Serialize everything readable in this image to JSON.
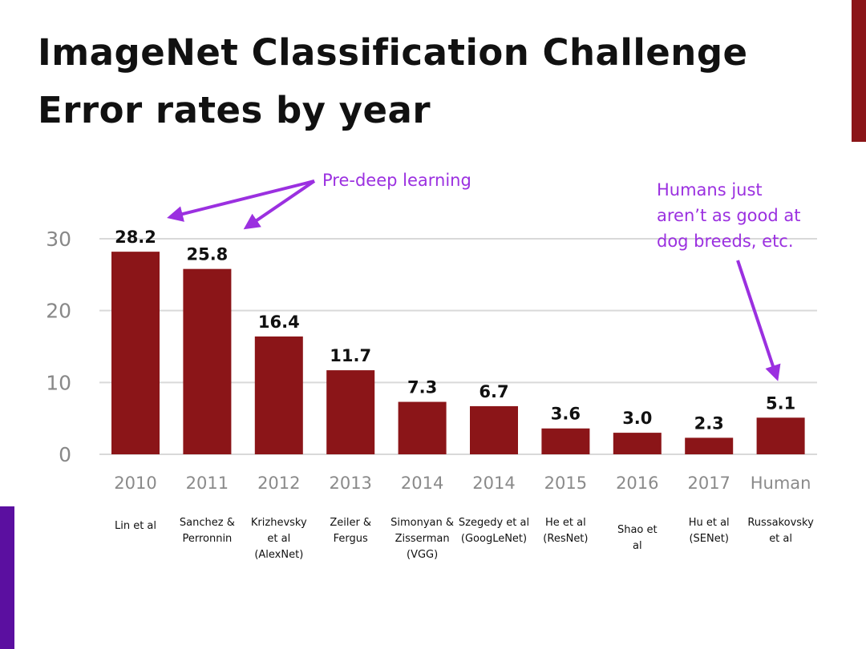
{
  "title": {
    "line1": "ImageNet Classification Challenge",
    "line2": "Error rates by year"
  },
  "colors": {
    "bar": "#8b1518",
    "accent_right": "#8b1518",
    "accent_left": "#5b0fa0",
    "annotation": "#9b30e0",
    "gridline": "#d9d9d9"
  },
  "chart_data": {
    "type": "bar",
    "title": "ImageNet Classification Challenge Error rates by year",
    "xlabel": "",
    "ylabel": "",
    "ylim": [
      0,
      30
    ],
    "yticks": [
      0,
      10,
      20,
      30
    ],
    "grid": true,
    "categories": [
      "2010",
      "2011",
      "2012",
      "2013",
      "2014",
      "2014",
      "2015",
      "2016",
      "2017",
      "Human"
    ],
    "values": [
      28.2,
      25.8,
      16.4,
      11.7,
      7.3,
      6.7,
      3.6,
      3.0,
      2.3,
      5.1
    ],
    "value_labels": [
      "28.2",
      "25.8",
      "16.4",
      "11.7",
      "7.3",
      "6.7",
      "3.6",
      "3.0",
      "2.3",
      "5.1"
    ],
    "authors": [
      [
        "Lin et al"
      ],
      [
        "Sanchez &",
        "Perronnin"
      ],
      [
        "Krizhevsky",
        "et al",
        "(AlexNet)"
      ],
      [
        "Zeiler &",
        "Fergus"
      ],
      [
        "Simonyan &",
        "Zisserman",
        "(VGG)"
      ],
      [
        "Szegedy et al",
        "(GoogLeNet)"
      ],
      [
        "He et al",
        "(ResNet)"
      ],
      [
        "Shao et",
        "al"
      ],
      [
        "Hu et al",
        "(SENet)"
      ],
      [
        "Russakovsky",
        "et al"
      ]
    ],
    "annotations": [
      {
        "lines": [
          "Pre-deep learning"
        ],
        "targets": [
          0,
          1
        ]
      },
      {
        "lines": [
          "Humans just",
          "aren’t as good at",
          "dog breeds, etc."
        ],
        "targets": [
          9
        ]
      }
    ]
  }
}
